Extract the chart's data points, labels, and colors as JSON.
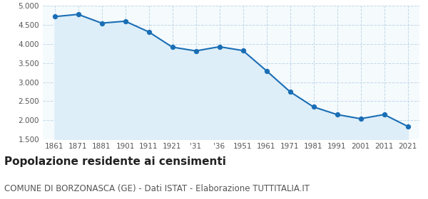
{
  "years": [
    1861,
    1871,
    1881,
    1901,
    1911,
    1921,
    1931,
    1936,
    1951,
    1961,
    1971,
    1981,
    1991,
    2001,
    2011,
    2021
  ],
  "values": [
    4720,
    4780,
    4550,
    4600,
    4320,
    3920,
    3820,
    3930,
    3830,
    3300,
    2750,
    2350,
    2150,
    2040,
    2150,
    1840
  ],
  "xtick_labels": [
    "1861",
    "1871",
    "1881",
    "1901",
    "1911",
    "1921",
    "'31",
    "'36",
    "1951",
    "1961",
    "1971",
    "1981",
    "1991",
    "2001",
    "2011",
    "2021"
  ],
  "ylim": [
    1500,
    5000
  ],
  "yticks": [
    1500,
    2000,
    2500,
    3000,
    3500,
    4000,
    4500,
    5000
  ],
  "line_color": "#1a6eb5",
  "fill_color": "#ddeef8",
  "marker_color": "#1a6eb5",
  "bg_color": "#f5fafd",
  "grid_color": "#c0d8e8",
  "title": "Popolazione residente ai censimenti",
  "subtitle": "COMUNE DI BORZONASCA (GE) - Dati ISTAT - Elaborazione TUTTITALIA.IT",
  "title_fontsize": 11,
  "subtitle_fontsize": 8.5
}
